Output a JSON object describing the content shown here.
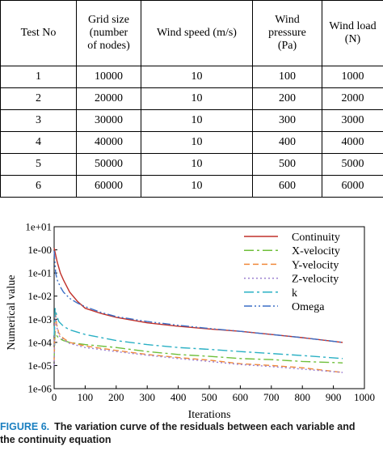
{
  "table": {
    "headers": [
      "Test No",
      "Grid size\n(number\nof nodes)",
      "Wind speed (m/s)",
      "Wind\npressure\n(Pa)",
      "Wind load\n(N)"
    ],
    "rows": [
      [
        "1",
        "10000",
        "10",
        "100",
        "1000"
      ],
      [
        "2",
        "20000",
        "10",
        "200",
        "2000"
      ],
      [
        "3",
        "30000",
        "10",
        "300",
        "3000"
      ],
      [
        "4",
        "40000",
        "10",
        "400",
        "4000"
      ],
      [
        "5",
        "50000",
        "10",
        "500",
        "5000"
      ],
      [
        "6",
        "60000",
        "10",
        "600",
        "6000"
      ]
    ]
  },
  "chart_data": {
    "type": "line",
    "xlabel": "Iterations",
    "ylabel": "Numerical value",
    "xlim": [
      0,
      1000
    ],
    "ylim": [
      1e-06,
      10
    ],
    "yscale": "log",
    "xticks": [
      "0",
      "100",
      "200",
      "300",
      "400",
      "500",
      "600",
      "700",
      "800",
      "900",
      "1000"
    ],
    "yticks": [
      "1e-06",
      "1e-05",
      "1e-04",
      "1e-03",
      "1e-02",
      "1e-01",
      "1e-00",
      "1e+01"
    ],
    "legend_position": "top-right",
    "grid": false,
    "series": [
      {
        "name": "Continuity",
        "color": "#c0302a",
        "dash": "",
        "x": [
          0,
          5,
          10,
          20,
          30,
          50,
          75,
          100,
          150,
          200,
          300,
          400,
          500,
          600,
          700,
          800,
          930
        ],
        "y": [
          1.2,
          0.6,
          0.3,
          0.1,
          0.05,
          0.015,
          0.006,
          0.003,
          0.0018,
          0.0012,
          0.0007,
          0.0005,
          0.00038,
          0.0003,
          0.00022,
          0.00016,
          0.0001
        ]
      },
      {
        "name": "X-velocity",
        "color": "#6fbf3a",
        "dash": "12,4,3,4",
        "x": [
          0,
          3,
          8,
          15,
          30,
          50,
          100,
          200,
          300,
          400,
          500,
          600,
          700,
          800,
          930
        ],
        "y": [
          2e-05,
          0.0003,
          0.0002,
          0.00015,
          0.00012,
          0.0001,
          8e-05,
          6e-05,
          4e-05,
          3e-05,
          2.5e-05,
          2e-05,
          1.8e-05,
          1.5e-05,
          1.3e-05
        ]
      },
      {
        "name": "Y-velocity",
        "color": "#f08a3c",
        "dash": "7,4",
        "x": [
          0,
          3,
          8,
          15,
          30,
          50,
          100,
          200,
          300,
          400,
          500,
          600,
          700,
          800,
          930
        ],
        "y": [
          1.5e-05,
          0.0025,
          0.0006,
          0.00025,
          0.00015,
          0.0001,
          7e-05,
          4.5e-05,
          3e-05,
          2.2e-05,
          1.7e-05,
          1.2e-05,
          1e-05,
          8e-06,
          5e-06
        ]
      },
      {
        "name": "Z-velocity",
        "color": "#9b7fd0",
        "dash": "2,3",
        "x": [
          0,
          3,
          8,
          15,
          30,
          50,
          100,
          200,
          300,
          400,
          500,
          600,
          700,
          800,
          930
        ],
        "y": [
          1e-05,
          0.002,
          0.0005,
          0.0002,
          0.00013,
          9e-05,
          6e-05,
          4e-05,
          2.8e-05,
          2e-05,
          1.5e-05,
          1.1e-05,
          9e-06,
          7e-06,
          5e-06
        ]
      },
      {
        "name": "k",
        "color": "#2ab0c4",
        "dash": "12,4,3,4",
        "x": [
          0,
          3,
          8,
          15,
          30,
          50,
          100,
          200,
          300,
          400,
          500,
          600,
          700,
          800,
          930
        ],
        "y": [
          0.0002,
          0.003,
          0.0015,
          0.0008,
          0.0005,
          0.00035,
          0.00022,
          0.00012,
          8e-05,
          6e-05,
          5e-05,
          4e-05,
          3.3e-05,
          2.7e-05,
          2e-05
        ]
      },
      {
        "name": "Omega",
        "color": "#3b6fc6",
        "dash": "10,3,2,3,2,3",
        "x": [
          0,
          5,
          10,
          20,
          30,
          50,
          75,
          100,
          150,
          200,
          300,
          400,
          500,
          600,
          700,
          800,
          930
        ],
        "y": [
          0.9,
          0.1,
          0.05,
          0.025,
          0.015,
          0.008,
          0.005,
          0.0035,
          0.002,
          0.0013,
          0.0008,
          0.00055,
          0.0004,
          0.0003,
          0.00022,
          0.00016,
          0.0001
        ]
      }
    ]
  },
  "caption": {
    "label": "FIGURE 6.",
    "line1": "The variation curve of the residuals between each variable and",
    "line2": "the continuity equation"
  }
}
